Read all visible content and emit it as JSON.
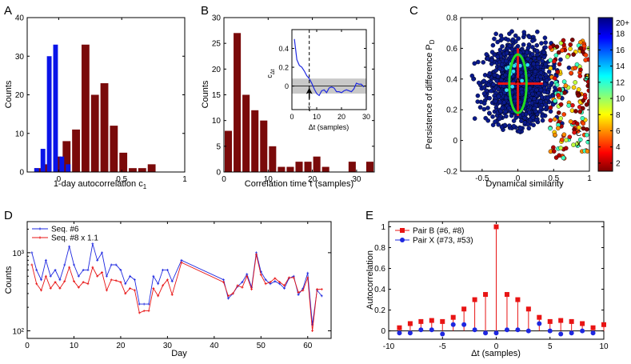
{
  "panel_labels": [
    "A",
    "B",
    "C",
    "D",
    "E"
  ],
  "chart_data": [
    {
      "panel": "A",
      "type": "bar",
      "xlabel": "1-day autocorrelation c",
      "xlabel_sub": "1",
      "ylabel": "Counts",
      "xlim": [
        -0.25,
        1.0
      ],
      "ylim": [
        0,
        40
      ],
      "xticks": [
        0,
        0.5,
        1
      ],
      "xtick_labels": [
        "0",
        "0.5",
        "1"
      ],
      "yticks": [
        0,
        10,
        20,
        30,
        40
      ],
      "series": [
        {
          "color": "#0a14e8",
          "bin_width": 0.05,
          "x": [
            -0.2,
            -0.15,
            -0.1,
            -0.05,
            0.0,
            0.05
          ],
          "values": [
            1,
            6,
            30,
            33,
            4,
            2
          ]
        },
        {
          "color": "#7a0a0a",
          "bin_width": 0.075,
          "x": [
            -0.2,
            -0.125,
            -0.05,
            0.025,
            0.1,
            0.175,
            0.25,
            0.325,
            0.4,
            0.475,
            0.55,
            0.625,
            0.7,
            0.775
          ],
          "values": [
            1,
            2,
            4,
            8,
            11,
            33,
            20,
            23,
            12,
            5,
            1,
            1,
            2,
            0
          ]
        }
      ]
    },
    {
      "panel": "B",
      "type": "bar",
      "xlabel": "Correlation time τ (samples)",
      "ylabel": "Counts",
      "xlim": [
        0,
        34
      ],
      "ylim": [
        0,
        30
      ],
      "xticks": [
        0,
        10,
        20,
        30
      ],
      "yticks": [
        0,
        5,
        10,
        15,
        20,
        25,
        30
      ],
      "bin_width": 2,
      "x": [
        1,
        3,
        5,
        7,
        9,
        11,
        13,
        15,
        17,
        19,
        21,
        23,
        25,
        27,
        29,
        31,
        33
      ],
      "values": [
        8,
        27,
        15,
        12,
        10,
        5,
        1,
        1,
        2,
        2,
        3,
        1,
        0,
        0,
        2,
        0,
        2
      ],
      "color": "#7a0a0a",
      "inset": {
        "type": "line",
        "ylabel": "c",
        "ylabel_sub": "Δt",
        "xlabel": "Δt (samples)",
        "xlim": [
          0,
          30
        ],
        "ylim": [
          -0.25,
          0.6
        ],
        "xticks": [
          0,
          10,
          20,
          30
        ],
        "yticks": [
          0,
          0.2,
          0.4
        ],
        "ytick_labels": [
          "0",
          "0.2",
          "0.4"
        ],
        "x": [
          1,
          2,
          3,
          4,
          5,
          6,
          7,
          8,
          9,
          10,
          11,
          12,
          13,
          14,
          15,
          16,
          17,
          18,
          19,
          20,
          21,
          22,
          23,
          24,
          25,
          26,
          27,
          28,
          29
        ],
        "y": [
          0.5,
          0.28,
          0.22,
          0.2,
          0.16,
          0.11,
          0.08,
          0.03,
          -0.03,
          -0.08,
          -0.1,
          -0.05,
          -0.04,
          -0.07,
          -0.02,
          -0.01,
          -0.02,
          -0.06,
          -0.06,
          -0.07,
          -0.05,
          -0.04,
          -0.05,
          -0.06,
          -0.03,
          0.03,
          0.02,
          0.02,
          -0.01
        ],
        "band": [
          -0.08,
          0.08
        ],
        "tau": 7,
        "tau_label": "τ",
        "color": "#1e28e0"
      }
    },
    {
      "panel": "C",
      "type": "scatter",
      "xlabel": "Dynamical similarity",
      "ylabel": "Persistence of difference P",
      "ylabel_sub": "D",
      "xlim": [
        -0.8,
        1.0
      ],
      "ylim": [
        -0.2,
        0.8
      ],
      "xticks": [
        -0.5,
        0,
        0.5,
        1
      ],
      "xtick_labels": [
        "-0.5",
        "0",
        "0.5",
        "1"
      ],
      "yticks": [
        -0.2,
        0,
        0.2,
        0.4,
        0.6,
        0.8
      ],
      "ytick_labels": [
        "-0.2",
        "0",
        "0.2",
        "0.4",
        "0.6",
        "0.8"
      ],
      "annotations": [
        {
          "text": "A",
          "x": 0.0,
          "y": 0.37
        },
        {
          "text": "B",
          "x": 0.97,
          "y": 0.4
        },
        {
          "text": "C",
          "x": 0.85,
          "y": 0.03
        },
        {
          "text": "X",
          "x": 0.85,
          "y": -0.04
        }
      ],
      "colorbar": {
        "ticks": [
          2,
          4,
          6,
          8,
          10,
          12,
          14,
          16,
          18
        ],
        "top_label": "20+",
        "range": [
          1,
          20
        ]
      },
      "ellipse_center": [
        0.0,
        0.37
      ],
      "ellipse_radii": [
        0.12,
        0.19
      ],
      "hline": {
        "x": [
          -0.28,
          0.35
        ],
        "y": 0.37
      },
      "vline": {
        "x": 0.0,
        "y": [
          0.16,
          0.6
        ]
      }
    },
    {
      "panel": "D",
      "type": "line",
      "xlabel": "Day",
      "ylabel": "Counts",
      "yscale": "log",
      "xlim": [
        0,
        65
      ],
      "ylim": [
        80,
        2500
      ],
      "xticks": [
        0,
        10,
        20,
        30,
        40,
        50,
        60
      ],
      "yticks": [
        100,
        1000
      ],
      "ytick_labels": [
        "10²",
        "10³"
      ],
      "legend_position": "top-left",
      "series": [
        {
          "name": "Seq. #6",
          "color": "#1e28e0",
          "x": [
            1,
            2,
            3,
            4,
            5,
            6,
            7,
            8,
            9,
            10,
            11,
            12,
            13,
            14,
            15,
            16,
            17,
            18,
            19,
            20,
            21,
            22,
            23,
            24,
            25,
            26,
            27,
            28,
            29,
            30,
            31,
            33,
            42,
            43,
            44,
            45,
            46,
            47,
            48,
            49,
            50,
            51,
            52,
            53,
            54,
            55,
            56,
            57,
            58,
            59,
            60,
            61,
            62,
            63
          ],
          "y": [
            1000,
            600,
            450,
            800,
            500,
            600,
            450,
            700,
            1200,
            700,
            500,
            600,
            600,
            1300,
            800,
            1000,
            500,
            700,
            700,
            600,
            400,
            500,
            450,
            220,
            220,
            220,
            500,
            400,
            600,
            600,
            430,
            800,
            450,
            260,
            300,
            370,
            420,
            530,
            360,
            1000,
            570,
            450,
            400,
            430,
            400,
            350,
            470,
            500,
            290,
            350,
            550,
            120,
            330,
            280
          ]
        },
        {
          "name": "Seq. #8 x 1.1",
          "color": "#e81414",
          "x": [
            1,
            2,
            3,
            4,
            5,
            6,
            7,
            8,
            9,
            10,
            11,
            12,
            13,
            14,
            15,
            16,
            17,
            18,
            19,
            20,
            21,
            22,
            23,
            24,
            25,
            26,
            27,
            28,
            29,
            30,
            31,
            33,
            42,
            43,
            44,
            45,
            46,
            47,
            48,
            49,
            50,
            51,
            52,
            53,
            54,
            55,
            56,
            57,
            58,
            59,
            60,
            61,
            62,
            63
          ],
          "y": [
            700,
            400,
            330,
            500,
            350,
            420,
            350,
            430,
            650,
            430,
            360,
            420,
            400,
            650,
            500,
            560,
            330,
            450,
            440,
            420,
            300,
            350,
            330,
            170,
            180,
            180,
            350,
            280,
            380,
            450,
            290,
            750,
            420,
            280,
            300,
            380,
            360,
            500,
            340,
            950,
            520,
            400,
            420,
            470,
            420,
            380,
            480,
            480,
            310,
            330,
            480,
            100,
            340,
            340
          ]
        }
      ]
    },
    {
      "panel": "E",
      "type": "scatter",
      "xlabel": "Δt (samples)",
      "ylabel": "Autocorrelation",
      "xlim": [
        -10,
        10
      ],
      "ylim": [
        -0.08,
        1.05
      ],
      "xticks": [
        -10,
        -5,
        0,
        5,
        10
      ],
      "yticks": [
        0,
        0.2,
        0.4,
        0.6,
        0.8,
        1
      ],
      "ytick_labels": [
        "0",
        "0.2",
        "0.4",
        "0.6",
        "0.8",
        "1"
      ],
      "legend_position": "top-left",
      "series": [
        {
          "name": "Pair B (#6, #8)",
          "color": "#e81414",
          "marker": "square",
          "stem": true,
          "x": [
            -9,
            -8,
            -7,
            -6,
            -5,
            -4,
            -3,
            -2,
            -1,
            0,
            1,
            2,
            3,
            4,
            5,
            6,
            7,
            8,
            9,
            10
          ],
          "y": [
            0.03,
            0.07,
            0.09,
            0.1,
            0.09,
            0.13,
            0.21,
            0.3,
            0.35,
            1.0,
            0.35,
            0.3,
            0.21,
            0.13,
            0.09,
            0.1,
            0.09,
            0.07,
            0.03,
            0.06
          ]
        },
        {
          "name": "Pair X (#73, #53)",
          "color": "#1e28e0",
          "marker": "circle",
          "stem": false,
          "x": [
            -9,
            -8,
            -7,
            -6,
            -5,
            -4,
            -3,
            -2,
            -1,
            0,
            1,
            2,
            3,
            4,
            5,
            6,
            7,
            8,
            9
          ],
          "y": [
            -0.02,
            -0.02,
            0.01,
            0.01,
            -0.03,
            0.06,
            0.06,
            0.01,
            -0.02,
            -0.02,
            0.01,
            0.01,
            0.0,
            0.07,
            0.0,
            -0.03,
            -0.02,
            0.0,
            -0.02
          ]
        }
      ]
    }
  ]
}
